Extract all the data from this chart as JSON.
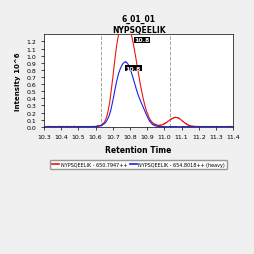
{
  "title_line1": "6_01_01",
  "title_line2": "NYPSQEELIK",
  "xlabel": "Retention Time",
  "ylabel": "Intensity 10^6",
  "xlim": [
    10.3,
    11.4
  ],
  "ylim": [
    0.0,
    1.3
  ],
  "yticks": [
    0.0,
    0.1,
    0.2,
    0.3,
    0.4,
    0.5,
    0.6,
    0.7,
    0.8,
    0.9,
    1.0,
    1.1,
    1.2
  ],
  "xticks": [
    10.3,
    10.4,
    10.5,
    10.6,
    10.7,
    10.8,
    10.9,
    11.0,
    11.1,
    11.2,
    11.3,
    11.4
  ],
  "vline1": 10.63,
  "vline2": 11.03,
  "red_peak_label": "10.8",
  "blue_peak_label": "10.8",
  "red_color": "#e8180c",
  "blue_color": "#2020e8",
  "legend_red": "NYPSQEELIK - 650.7947++",
  "legend_blue": "NYPSQEELIK - 654.8018++ (heavy)",
  "background_color": "#f0f0f0"
}
